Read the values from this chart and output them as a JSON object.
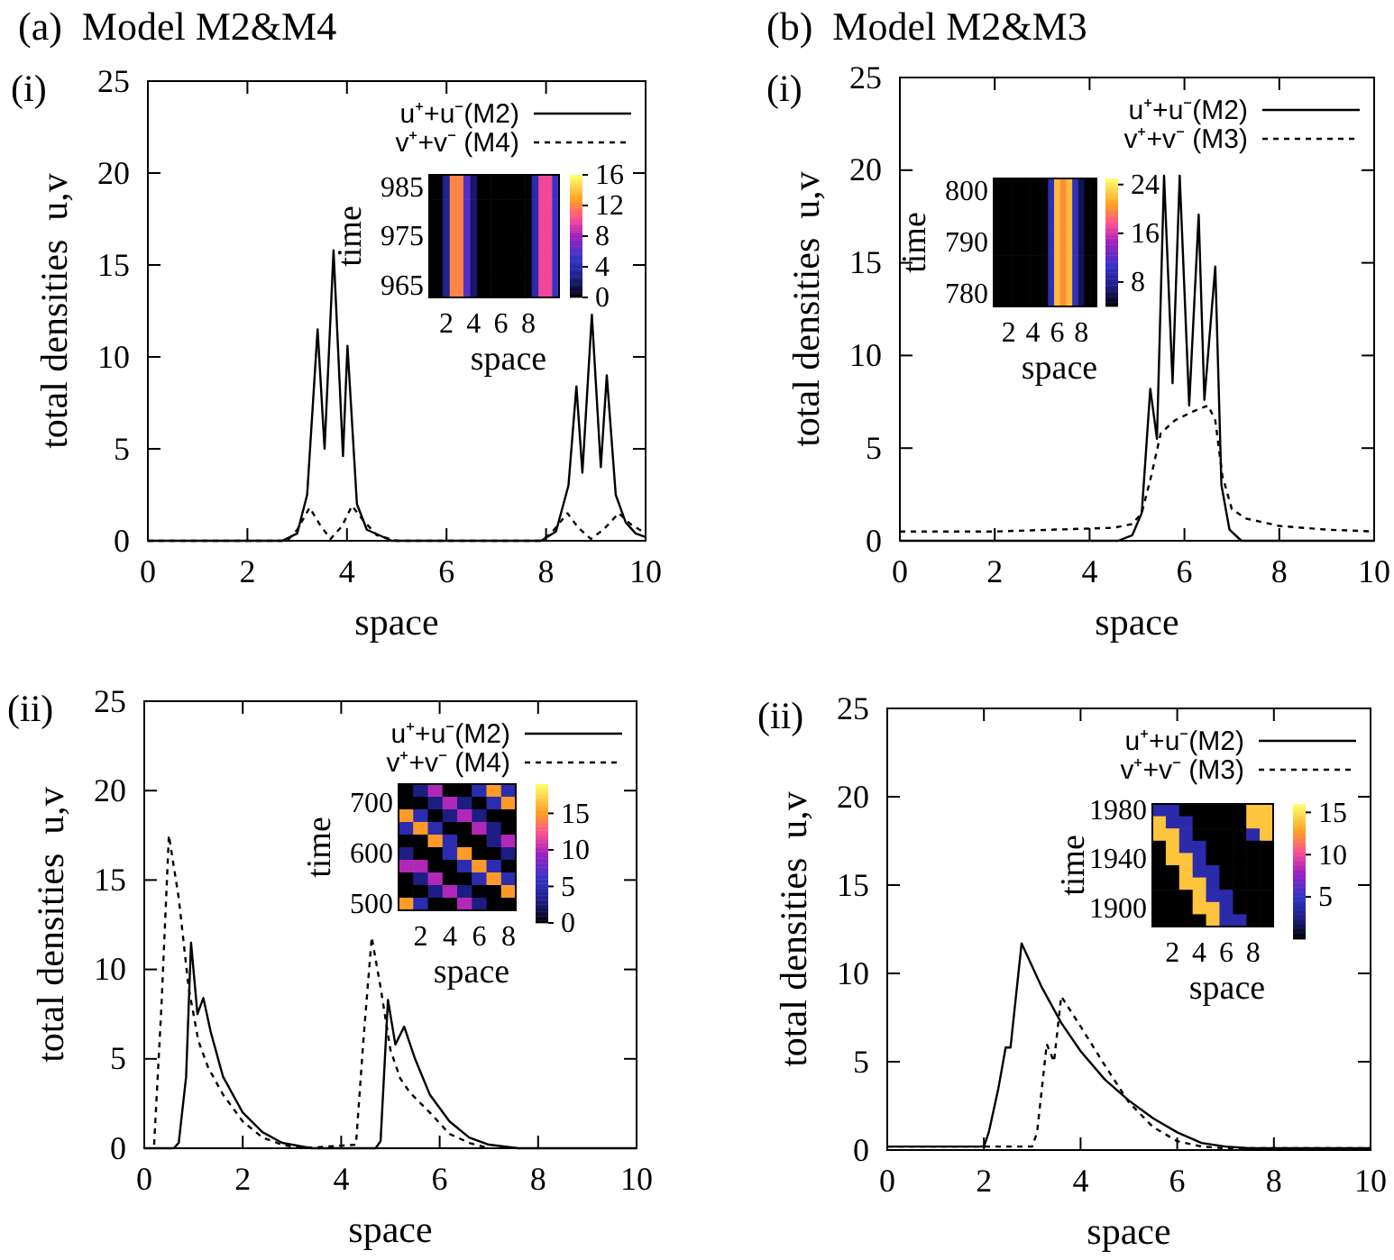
{
  "chart_data": [
    {
      "type": "line",
      "title": "(a)  Model M2&M4",
      "subtitle": "(i)",
      "xlabel": "space",
      "ylabel": "total densities  u,v",
      "xlim": [
        0,
        10
      ],
      "xticks": [
        0,
        2,
        4,
        6,
        8,
        10
      ],
      "ylim": [
        0,
        25
      ],
      "yticks": [
        0,
        5,
        10,
        15,
        20,
        25
      ],
      "legend": "top right",
      "series": [
        {
          "name": "u⁺+u⁻(M2)",
          "color": "#000000",
          "line_style": "solid",
          "x": [
            0,
            2.7,
            3.0,
            3.2,
            3.41,
            3.55,
            3.73,
            3.92,
            4.01,
            4.2,
            4.4,
            4.9,
            7.9,
            8.2,
            8.45,
            8.61,
            8.73,
            8.92,
            9.1,
            9.22,
            9.4,
            9.6,
            9.8,
            10
          ],
          "values": [
            0,
            0,
            0.4,
            2.5,
            11.5,
            5,
            15.8,
            4.6,
            10.6,
            2,
            0.6,
            0,
            0,
            0.5,
            3,
            8.4,
            3.7,
            12.3,
            4,
            9,
            2.5,
            1,
            0.4,
            0.2
          ]
        },
        {
          "name": "v⁺+v⁻ (M4)",
          "color": "#000000",
          "line_style": "dashed",
          "x": [
            0,
            2.8,
            3.0,
            3.25,
            3.45,
            3.67,
            3.9,
            4.1,
            4.3,
            4.6,
            5,
            7.9,
            8.1,
            8.43,
            8.65,
            8.9,
            9.15,
            9.46,
            9.7,
            10
          ],
          "values": [
            0,
            0,
            0.6,
            1.8,
            0.9,
            0.1,
            0.8,
            1.9,
            1.2,
            0.3,
            0,
            0,
            0.4,
            1.5,
            0.7,
            0.1,
            0.6,
            1.5,
            0.9,
            0.4
          ]
        }
      ]
    },
    {
      "type": "line",
      "title": "(b)  Model M2&M3",
      "subtitle": "(i)",
      "xlabel": "space",
      "ylabel": "total densities  u,v",
      "xlim": [
        0,
        10
      ],
      "xticks": [
        0,
        2,
        4,
        6,
        8,
        10
      ],
      "ylim": [
        0,
        25
      ],
      "yticks": [
        0,
        5,
        10,
        15,
        20,
        25
      ],
      "legend": "top right",
      "series": [
        {
          "name": "u⁺+u⁻(M2)",
          "color": "#000000",
          "line_style": "solid",
          "x": [
            0,
            4.6,
            4.9,
            5.1,
            5.28,
            5.42,
            5.57,
            5.75,
            5.9,
            6.1,
            6.3,
            6.42,
            6.65,
            6.78,
            6.95,
            7.2,
            10
          ],
          "values": [
            0,
            0,
            0.3,
            1.5,
            8.2,
            5.5,
            19.7,
            8.5,
            19.7,
            7.3,
            17.6,
            7.6,
            14.8,
            3,
            0.6,
            0,
            0
          ]
        },
        {
          "name": "v⁺+v⁻ (M3)",
          "color": "#000000",
          "line_style": "dashed",
          "x": [
            0,
            2,
            4.5,
            4.9,
            5.1,
            5.3,
            5.5,
            5.8,
            6.2,
            6.5,
            6.65,
            6.8,
            7.0,
            7.3,
            8,
            9,
            10
          ],
          "values": [
            0.5,
            0.5,
            0.7,
            0.9,
            1.5,
            3.5,
            5.8,
            6.5,
            7.0,
            7.3,
            6.5,
            3.5,
            1.7,
            1.2,
            0.8,
            0.6,
            0.5
          ]
        }
      ]
    },
    {
      "type": "line",
      "title": "(ii)",
      "xlabel": "space",
      "ylabel": "total densities  u,v",
      "xlim": [
        0,
        10
      ],
      "xticks": [
        0,
        2,
        4,
        6,
        8,
        10
      ],
      "ylim": [
        0,
        25
      ],
      "yticks": [
        0,
        5,
        10,
        15,
        20,
        25
      ],
      "legend": "top right",
      "series": [
        {
          "name": "u⁺+u⁻(M2)",
          "color": "#000000",
          "line_style": "solid",
          "x": [
            0,
            0.6,
            0.7,
            0.85,
            0.95,
            1.08,
            1.2,
            1.35,
            1.6,
            2.0,
            2.4,
            2.8,
            3.4,
            4.7,
            4.8,
            4.95,
            5.1,
            5.28,
            5.5,
            5.8,
            6.2,
            6.6,
            7.0,
            7.6,
            10
          ],
          "values": [
            0,
            0,
            0.3,
            4,
            11.5,
            7.5,
            8.4,
            6.5,
            4,
            2,
            0.9,
            0.3,
            0,
            0,
            0.4,
            8.3,
            5.8,
            6.8,
            5,
            3,
            1.5,
            0.6,
            0.2,
            0,
            0
          ]
        },
        {
          "name": "v⁺+v⁻ (M4)",
          "color": "#000000",
          "line_style": "dashed",
          "x": [
            0.2,
            0.35,
            0.5,
            0.7,
            0.9,
            1.1,
            1.3,
            1.6,
            2.0,
            2.4,
            2.8,
            3.2,
            4.3,
            4.45,
            4.62,
            4.8,
            5.0,
            5.2,
            5.4,
            5.8,
            6.2,
            6.6,
            7.0
          ],
          "values": [
            0.2,
            8,
            17.5,
            14,
            9,
            6,
            4.5,
            3,
            1.5,
            0.6,
            0.2,
            0,
            0.2,
            6,
            11.8,
            9,
            5.5,
            3.9,
            3.1,
            2,
            0.8,
            0.3,
            0
          ]
        }
      ]
    },
    {
      "type": "line",
      "title": "(ii)",
      "xlabel": "space",
      "ylabel": "total densities  u,v",
      "xlim": [
        0,
        10
      ],
      "xticks": [
        0,
        2,
        4,
        6,
        8,
        10
      ],
      "ylim": [
        0,
        25
      ],
      "yticks": [
        0,
        5,
        10,
        15,
        20,
        25
      ],
      "legend": "top right",
      "series": [
        {
          "name": "u⁺+u⁻(M2)",
          "color": "#000000",
          "line_style": "solid",
          "x": [
            0,
            2.0,
            2.1,
            2.3,
            2.45,
            2.55,
            2.78,
            3.2,
            3.6,
            4.0,
            4.5,
            5,
            5.5,
            6,
            6.5,
            7,
            7.5,
            10
          ],
          "values": [
            0.2,
            0.2,
            1,
            3.5,
            5.8,
            5.8,
            11.7,
            9.2,
            7.2,
            5.6,
            4,
            2.8,
            1.8,
            1.0,
            0.4,
            0.2,
            0.1,
            0.1
          ]
        },
        {
          "name": "v⁺+v⁻ (M3)",
          "color": "#000000",
          "line_style": "dashed",
          "x": [
            0,
            3.0,
            3.1,
            3.2,
            3.3,
            3.45,
            3.6,
            4.0,
            4.5,
            5,
            5.5,
            6,
            6.5,
            7,
            10
          ],
          "values": [
            0.2,
            0.2,
            1,
            3.5,
            6,
            5,
            8.7,
            7,
            4.8,
            2.7,
            1.3,
            0.5,
            0.2,
            0.1,
            0.1
          ]
        }
      ]
    },
    {
      "type": "heatmap",
      "xlabel": "space",
      "ylabel": "time",
      "clim": [
        0,
        16
      ],
      "cticks": [
        0,
        4,
        8,
        12,
        16
      ],
      "categories": [
        null,
        null,
        "2",
        null,
        null,
        null,
        "4",
        null,
        null,
        null,
        "6",
        null,
        null,
        null,
        "8",
        null,
        null,
        null,
        null
      ],
      "y_categories": [
        "985",
        null,
        "975",
        null,
        "965"
      ],
      "cells": [
        [
          0,
          0,
          3,
          12,
          12,
          6,
          2,
          0,
          0,
          0,
          0,
          0,
          0,
          0,
          0,
          4,
          10,
          10,
          5
        ],
        [
          0,
          0,
          3,
          12,
          12,
          6,
          2,
          0,
          0,
          0,
          0,
          0,
          0,
          0,
          0,
          4,
          10,
          10,
          5
        ],
        [
          0,
          0,
          3,
          12,
          12,
          6,
          2,
          0,
          0,
          0,
          0,
          0,
          0,
          0,
          0,
          4,
          10,
          10,
          5
        ],
        [
          0,
          0,
          3,
          12,
          12,
          6,
          2,
          0,
          0,
          0,
          0,
          0,
          0,
          0,
          0,
          4,
          10,
          10,
          5
        ],
        [
          0,
          0,
          3,
          12,
          12,
          6,
          2,
          0,
          0,
          0,
          0,
          0,
          0,
          0,
          0,
          4,
          10,
          10,
          5
        ]
      ]
    },
    {
      "type": "heatmap",
      "xlabel": "space",
      "ylabel": "time",
      "clim": [
        4,
        25
      ],
      "cticks": [
        8,
        16,
        24
      ],
      "categories": [
        null,
        null,
        "2",
        null,
        null,
        null,
        "4",
        null,
        null,
        null,
        "6",
        null,
        null,
        null,
        "8",
        null,
        null
      ],
      "y_categories": [
        "800",
        null,
        "790",
        null,
        "780"
      ],
      "cells": [
        [
          4,
          4,
          4,
          4,
          4,
          4,
          4,
          4,
          4,
          10,
          22,
          20,
          22,
          10,
          6,
          4,
          4
        ],
        [
          4,
          4,
          4,
          4,
          4,
          4,
          4,
          4,
          4,
          10,
          22,
          20,
          22,
          10,
          6,
          4,
          4
        ],
        [
          4,
          4,
          4,
          4,
          4,
          4,
          4,
          4,
          4,
          10,
          22,
          20,
          22,
          10,
          6,
          4,
          4
        ],
        [
          4,
          4,
          4,
          4,
          4,
          4,
          4,
          4,
          4,
          10,
          22,
          20,
          22,
          10,
          6,
          4,
          4
        ],
        [
          4,
          4,
          4,
          4,
          4,
          4,
          4,
          4,
          4,
          10,
          22,
          20,
          22,
          10,
          6,
          4,
          4
        ]
      ]
    },
    {
      "type": "heatmap",
      "xlabel": "space",
      "ylabel": "time",
      "clim": [
        0,
        19
      ],
      "cticks": [
        0,
        5,
        10,
        15
      ],
      "categories": [
        null,
        "2",
        null,
        "4",
        null,
        "6",
        null,
        "8"
      ],
      "y_categories": [
        null,
        "700",
        null,
        null,
        null,
        "600",
        null,
        null,
        null,
        "500"
      ],
      "cells": [
        [
          0,
          3,
          10,
          0,
          0,
          5,
          15,
          5
        ],
        [
          0,
          0,
          3,
          10,
          3,
          0,
          5,
          15
        ],
        [
          15,
          5,
          0,
          3,
          10,
          3,
          0,
          0
        ],
        [
          5,
          15,
          5,
          0,
          0,
          10,
          3,
          0
        ],
        [
          0,
          0,
          15,
          5,
          0,
          0,
          3,
          10
        ],
        [
          3,
          0,
          0,
          5,
          15,
          0,
          0,
          3
        ],
        [
          10,
          10,
          0,
          0,
          5,
          15,
          5,
          0
        ],
        [
          0,
          3,
          10,
          0,
          0,
          5,
          15,
          5
        ],
        [
          0,
          0,
          3,
          10,
          3,
          0,
          0,
          15
        ],
        [
          15,
          5,
          0,
          0,
          10,
          3,
          0,
          0
        ]
      ]
    },
    {
      "type": "heatmap",
      "xlabel": "space",
      "ylabel": "time",
      "clim": [
        0,
        16
      ],
      "cticks": [
        5,
        10,
        15
      ],
      "categories": [
        null,
        "2",
        null,
        "4",
        null,
        "6",
        null,
        "8",
        null
      ],
      "y_categories": [
        "1980",
        null,
        null,
        null,
        "1940",
        null,
        null,
        null,
        "1900",
        null
      ],
      "cells": [
        [
          4,
          4,
          0,
          0,
          0,
          0,
          0,
          14,
          14
        ],
        [
          14,
          4,
          4,
          0,
          0,
          0,
          0,
          14,
          14
        ],
        [
          14,
          14,
          4,
          0,
          0,
          0,
          0,
          4,
          14
        ],
        [
          0,
          14,
          4,
          4,
          0,
          0,
          0,
          0,
          0
        ],
        [
          0,
          14,
          14,
          4,
          0,
          0,
          0,
          0,
          0
        ],
        [
          0,
          0,
          14,
          4,
          4,
          0,
          0,
          0,
          0
        ],
        [
          0,
          0,
          14,
          14,
          4,
          0,
          0,
          0,
          0
        ],
        [
          0,
          0,
          0,
          14,
          4,
          4,
          0,
          0,
          0
        ],
        [
          0,
          0,
          0,
          14,
          14,
          4,
          0,
          0,
          0
        ],
        [
          0,
          0,
          0,
          0,
          14,
          4,
          4,
          0,
          0
        ]
      ]
    }
  ]
}
